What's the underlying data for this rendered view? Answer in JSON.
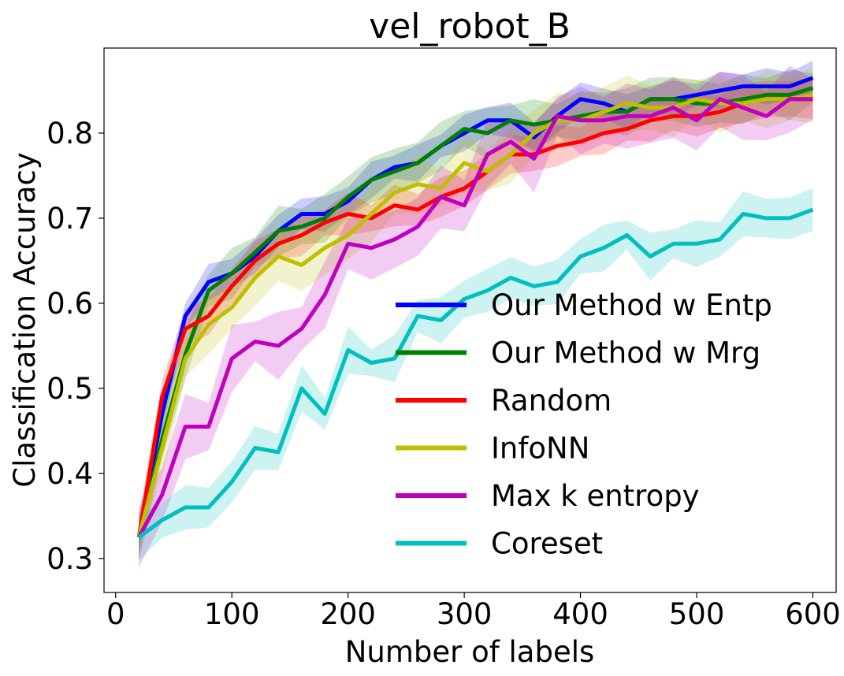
{
  "chart_data": {
    "type": "line",
    "title": "vel_robot_B",
    "xlabel": "Number of labels",
    "ylabel": "Classification Accuracy",
    "xlim": [
      -10,
      620
    ],
    "ylim": [
      0.26,
      0.9
    ],
    "xticks": [
      0,
      100,
      200,
      300,
      400,
      500,
      600
    ],
    "xtick_labels": [
      "0",
      "100",
      "200",
      "300",
      "400",
      "500",
      "600"
    ],
    "yticks": [
      0.3,
      0.4,
      0.5,
      0.6,
      0.7,
      0.8
    ],
    "ytick_labels": [
      "0.3",
      "0.4",
      "0.5",
      "0.6",
      "0.7",
      "0.8"
    ],
    "grid": false,
    "legend_position": "center-right",
    "x": [
      20,
      40,
      60,
      80,
      100,
      120,
      140,
      160,
      180,
      200,
      220,
      240,
      260,
      280,
      300,
      320,
      340,
      360,
      380,
      400,
      420,
      440,
      460,
      480,
      500,
      520,
      540,
      560,
      580,
      600
    ],
    "series": [
      {
        "name": "Our Method w Entp",
        "color": "#0000ff",
        "values": [
          0.325,
          0.47,
          0.585,
          0.625,
          0.635,
          0.655,
          0.685,
          0.705,
          0.705,
          0.72,
          0.745,
          0.76,
          0.765,
          0.785,
          0.8,
          0.815,
          0.815,
          0.795,
          0.82,
          0.84,
          0.835,
          0.825,
          0.84,
          0.84,
          0.845,
          0.85,
          0.855,
          0.855,
          0.855,
          0.865
        ],
        "band": 0.022
      },
      {
        "name": "Our Method w Mrg",
        "color": "#008000",
        "values": [
          0.325,
          0.44,
          0.54,
          0.615,
          0.635,
          0.66,
          0.685,
          0.69,
          0.7,
          0.725,
          0.745,
          0.755,
          0.765,
          0.785,
          0.805,
          0.8,
          0.815,
          0.81,
          0.815,
          0.82,
          0.825,
          0.825,
          0.84,
          0.84,
          0.835,
          0.835,
          0.84,
          0.845,
          0.845,
          0.853
        ],
        "band": 0.03
      },
      {
        "name": "Random",
        "color": "#ff0000",
        "values": [
          0.325,
          0.49,
          0.57,
          0.585,
          0.62,
          0.65,
          0.67,
          0.68,
          0.695,
          0.705,
          0.7,
          0.715,
          0.71,
          0.725,
          0.735,
          0.755,
          0.775,
          0.775,
          0.785,
          0.79,
          0.8,
          0.805,
          0.815,
          0.82,
          0.82,
          0.825,
          0.835,
          0.84,
          0.84,
          0.84
        ],
        "band": 0.025
      },
      {
        "name": "InfoNN",
        "color": "#bfbf00",
        "values": [
          0.325,
          0.43,
          0.535,
          0.575,
          0.595,
          0.63,
          0.655,
          0.645,
          0.665,
          0.68,
          0.705,
          0.73,
          0.74,
          0.735,
          0.765,
          0.755,
          0.775,
          0.8,
          0.815,
          0.815,
          0.825,
          0.835,
          0.83,
          0.83,
          0.84,
          0.835,
          0.835,
          0.84,
          0.84,
          0.845
        ],
        "band": 0.035
      },
      {
        "name": "Max k entropy",
        "color": "#bf00bf",
        "values": [
          0.325,
          0.375,
          0.455,
          0.455,
          0.535,
          0.555,
          0.55,
          0.57,
          0.61,
          0.67,
          0.665,
          0.675,
          0.69,
          0.725,
          0.715,
          0.775,
          0.79,
          0.77,
          0.82,
          0.815,
          0.815,
          0.82,
          0.82,
          0.83,
          0.815,
          0.84,
          0.83,
          0.82,
          0.84,
          0.84
        ],
        "band": 0.04
      },
      {
        "name": "Coreset",
        "color": "#00bfbf",
        "values": [
          0.325,
          0.345,
          0.36,
          0.36,
          0.39,
          0.43,
          0.425,
          0.5,
          0.47,
          0.545,
          0.53,
          0.535,
          0.585,
          0.58,
          0.605,
          0.615,
          0.63,
          0.62,
          0.625,
          0.655,
          0.665,
          0.68,
          0.655,
          0.67,
          0.67,
          0.675,
          0.705,
          0.7,
          0.7,
          0.71
        ],
        "band": 0.028
      }
    ]
  }
}
